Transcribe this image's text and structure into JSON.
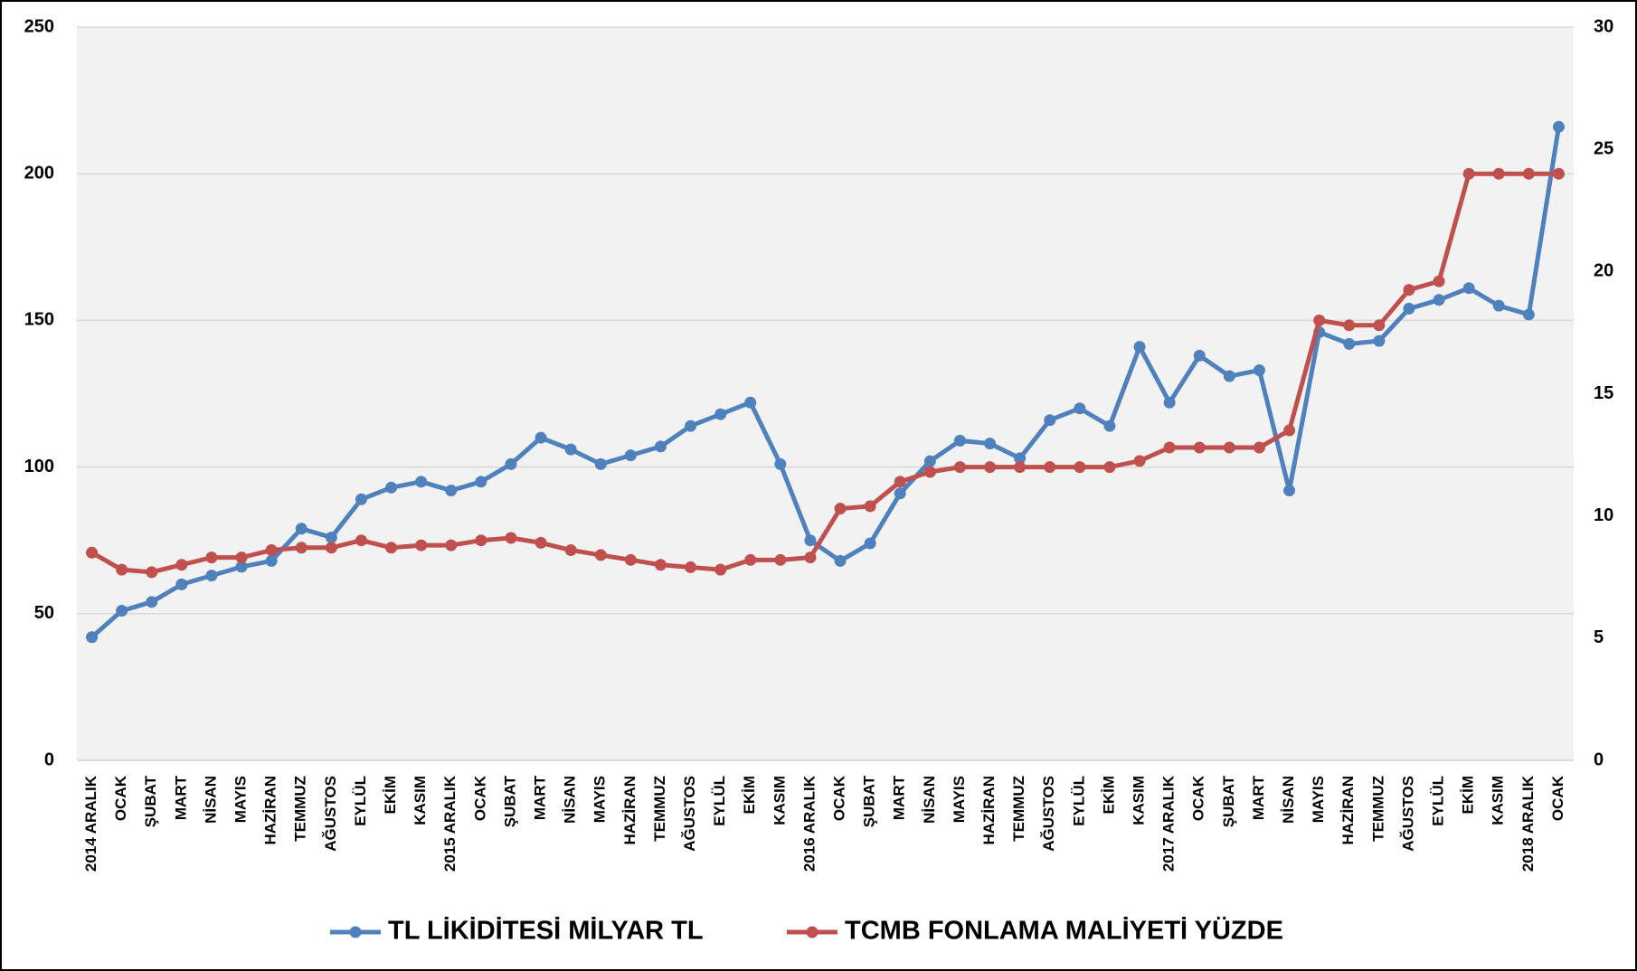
{
  "chart_data": {
    "type": "line",
    "categories": [
      "2014 ARALIK",
      "OCAK",
      "ŞUBAT",
      "MART",
      "NİSAN",
      "MAYIS",
      "HAZİRAN",
      "TEMMUZ",
      "AĞUSTOS",
      "EYLÜL",
      "EKİM",
      "KASIM",
      "2015 ARALIK",
      "OCAK",
      "ŞUBAT",
      "MART",
      "NİSAN",
      "MAYIS",
      "HAZİRAN",
      "TEMMUZ",
      "AĞUSTOS",
      "EYLÜL",
      "EKİM",
      "KASIM",
      "2016 ARALIK",
      "OCAK",
      "ŞUBAT",
      "MART",
      "NİSAN",
      "MAYIS",
      "HAZİRAN",
      "TEMMUZ",
      "AĞUSTOS",
      "EYLÜL",
      "EKİM",
      "KASIM",
      "2017 ARALIK",
      "OCAK",
      "ŞUBAT",
      "MART",
      "NİSAN",
      "MAYIS",
      "HAZİRAN",
      "TEMMUZ",
      "AĞUSTOS",
      "EYLÜL",
      "EKİM",
      "KASIM",
      "2018 ARALIK",
      "OCAK"
    ],
    "series": [
      {
        "name": "TL LİKİDİTESİ MİLYAR TL",
        "color": "#4f81bd",
        "values": [
          42,
          51,
          54,
          60,
          63,
          66,
          68,
          79,
          76,
          89,
          93,
          95,
          92,
          95,
          101,
          110,
          106,
          101,
          104,
          107,
          114,
          118,
          122,
          101,
          75,
          68,
          74,
          91,
          102,
          109,
          108,
          103,
          116,
          120,
          114,
          141,
          122,
          138,
          131,
          133,
          92,
          146,
          142,
          143,
          154,
          157,
          161,
          155,
          152,
          216
        ]
      },
      {
        "name": "TCMB FONLAMA MALİYETİ YÜZDE",
        "color": "#c0504d",
        "axis": "y2",
        "values": [
          8.5,
          7.8,
          7.7,
          8.0,
          8.3,
          8.3,
          8.6,
          8.7,
          8.7,
          9.0,
          8.7,
          8.8,
          8.8,
          9.0,
          9.1,
          8.9,
          8.6,
          8.4,
          8.2,
          8.0,
          7.9,
          7.8,
          8.2,
          8.2,
          8.3,
          10.3,
          10.4,
          11.4,
          11.8,
          12.0,
          12.0,
          12.0,
          12.0,
          12.0,
          12.0,
          12.25,
          12.8,
          12.8,
          12.8,
          12.8,
          13.5,
          18.0,
          17.8,
          17.8,
          19.25,
          19.6,
          24,
          24,
          24,
          24
        ]
      }
    ],
    "ylim": [
      0,
      250
    ],
    "yticks": [
      0,
      50,
      100,
      150,
      200,
      250
    ],
    "y2lim": [
      0,
      30
    ],
    "y2ticks": [
      0,
      5,
      10,
      15,
      20,
      25,
      30
    ],
    "grid": true,
    "legend": "bottom"
  }
}
